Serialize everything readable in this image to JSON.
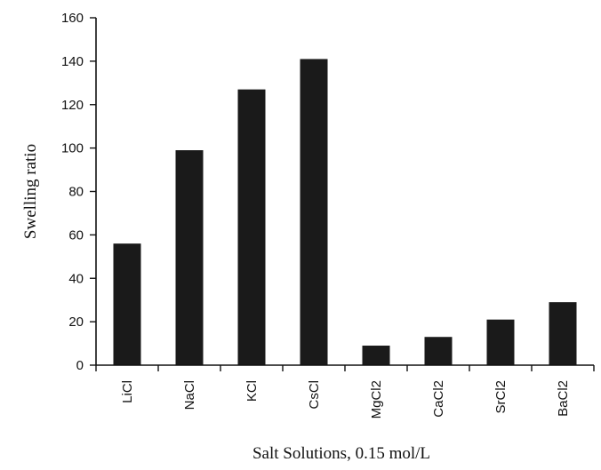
{
  "chart_data": {
    "type": "bar",
    "title": "",
    "xlabel": "Salt Solutions, 0.15 mol/L",
    "ylabel": "Swelling ratio",
    "ylim": [
      0,
      160
    ],
    "yticks": [
      "0",
      "20",
      "40",
      "60",
      "80",
      "100",
      "120",
      "140",
      "160"
    ],
    "categories": [
      "LiCl",
      "NaCl",
      "KCl",
      "CsCl",
      "MgCl2",
      "CaCl2",
      "SrCl2",
      "BaCl2"
    ],
    "values": [
      56,
      99,
      127,
      141,
      9,
      13,
      21,
      29
    ],
    "grid": false,
    "legend": "none",
    "bar_color": "#1a1a1a"
  }
}
